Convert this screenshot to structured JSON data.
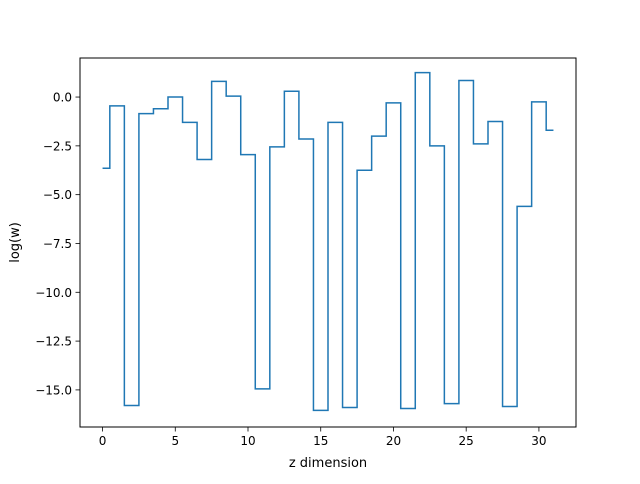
{
  "chart_data": {
    "type": "line",
    "drawstyle": "steps-mid",
    "title": "",
    "xlabel": "z dimension",
    "ylabel": "log(w)",
    "xlim": [
      -1.55,
      32.55
    ],
    "ylim": [
      -16.9,
      2.0
    ],
    "xticks": [
      0,
      5,
      10,
      15,
      20,
      25,
      30
    ],
    "xtick_labels": [
      "0",
      "5",
      "10",
      "15",
      "20",
      "25",
      "30"
    ],
    "yticks": [
      0.0,
      -2.5,
      -5.0,
      -7.5,
      -10.0,
      -12.5,
      -15.0
    ],
    "ytick_labels": [
      "0.0",
      "−2.5",
      "−5.0",
      "−7.5",
      "−10.0",
      "−12.5",
      "−15.0"
    ],
    "grid": false,
    "series": [
      {
        "color": "#1f77b4",
        "x": [
          0,
          1,
          2,
          3,
          4,
          5,
          6,
          7,
          8,
          9,
          10,
          11,
          12,
          13,
          14,
          15,
          16,
          17,
          18,
          19,
          20,
          21,
          22,
          23,
          24,
          25,
          26,
          27,
          28,
          29,
          30,
          31
        ],
        "values": [
          -3.65,
          -0.45,
          -15.8,
          -0.85,
          -0.6,
          0.0,
          -1.3,
          -3.2,
          0.8,
          0.05,
          -2.95,
          -14.95,
          -2.55,
          0.3,
          -2.15,
          -16.05,
          -1.3,
          -15.9,
          -3.75,
          -2.0,
          -0.3,
          -15.95,
          1.25,
          -2.5,
          -15.7,
          0.85,
          -2.4,
          -1.25,
          -15.85,
          -5.6,
          -0.25,
          -1.7
        ]
      }
    ]
  }
}
